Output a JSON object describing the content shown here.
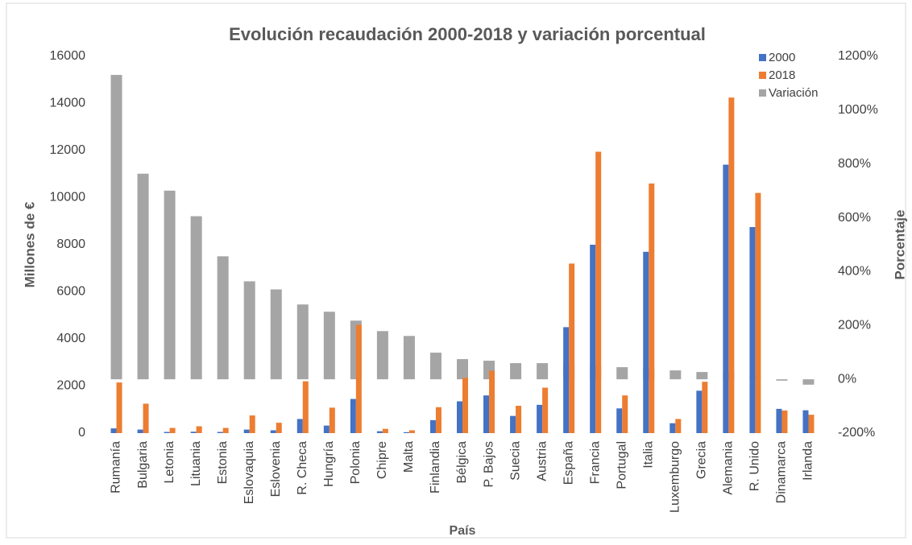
{
  "chart_data": {
    "type": "bar",
    "title": "Evolución recaudación 2000-2018 y variación porcentual",
    "xlabel": "País",
    "ylabel": "Millones de €",
    "y2label": "Porcentaje",
    "categories": [
      "Rumanía",
      "Bulgaria",
      "Letonia",
      "Lituania",
      "Estonia",
      "Eslovaquia",
      "Eslovenia",
      "R. Checa",
      "Hungría",
      "Polonia",
      "Chipre",
      "Malta",
      "Finlandia",
      "Bélgica",
      "P. Bajos",
      "Suecia",
      "Austria",
      "España",
      "Francia",
      "Portugal",
      "Italia",
      "Luxemburgo",
      "Grecia",
      "Alemania",
      "R. Unido",
      "Dinamarca",
      "Irlanda"
    ],
    "series": [
      {
        "name": "2000",
        "color": "#4472c4",
        "values": [
          200,
          150,
          50,
          60,
          50,
          150,
          120,
          600,
          320,
          1450,
          80,
          40,
          550,
          1350,
          1600,
          730,
          1200,
          4500,
          8000,
          1050,
          7700,
          420,
          1800,
          11400,
          8750,
          1030,
          970
        ]
      },
      {
        "name": "2018",
        "color": "#ed7d31",
        "values": [
          2150,
          1250,
          220,
          290,
          220,
          750,
          440,
          2200,
          1080,
          4600,
          180,
          120,
          1100,
          2350,
          2650,
          1160,
          1930,
          7200,
          11950,
          1600,
          10600,
          600,
          2180,
          14250,
          10200,
          960,
          780
        ]
      },
      {
        "name": "Variación",
        "color": "#a5a5a5",
        "axis": "y2",
        "values": [
          1131,
          764,
          701,
          606,
          457,
          364,
          334,
          278,
          251,
          218,
          179,
          161,
          99,
          75,
          69,
          60,
          60,
          60,
          51,
          45,
          39,
          33,
          27,
          25,
          17,
          -5,
          -20
        ]
      }
    ],
    "ylim": [
      0,
      16000
    ],
    "yticks": [
      0,
      2000,
      4000,
      6000,
      8000,
      10000,
      12000,
      14000,
      16000
    ],
    "y2lim": [
      -200,
      1200
    ],
    "y2ticks": [
      {
        "value": -200,
        "label": "-200%"
      },
      {
        "value": 0,
        "label": "0%"
      },
      {
        "value": 200,
        "label": "200%"
      },
      {
        "value": 400,
        "label": "400%"
      },
      {
        "value": 600,
        "label": "600%"
      },
      {
        "value": 800,
        "label": "800%"
      },
      {
        "value": 1000,
        "label": "1000%"
      },
      {
        "value": 1200,
        "label": "1200%"
      }
    ],
    "legend": "top-right"
  }
}
